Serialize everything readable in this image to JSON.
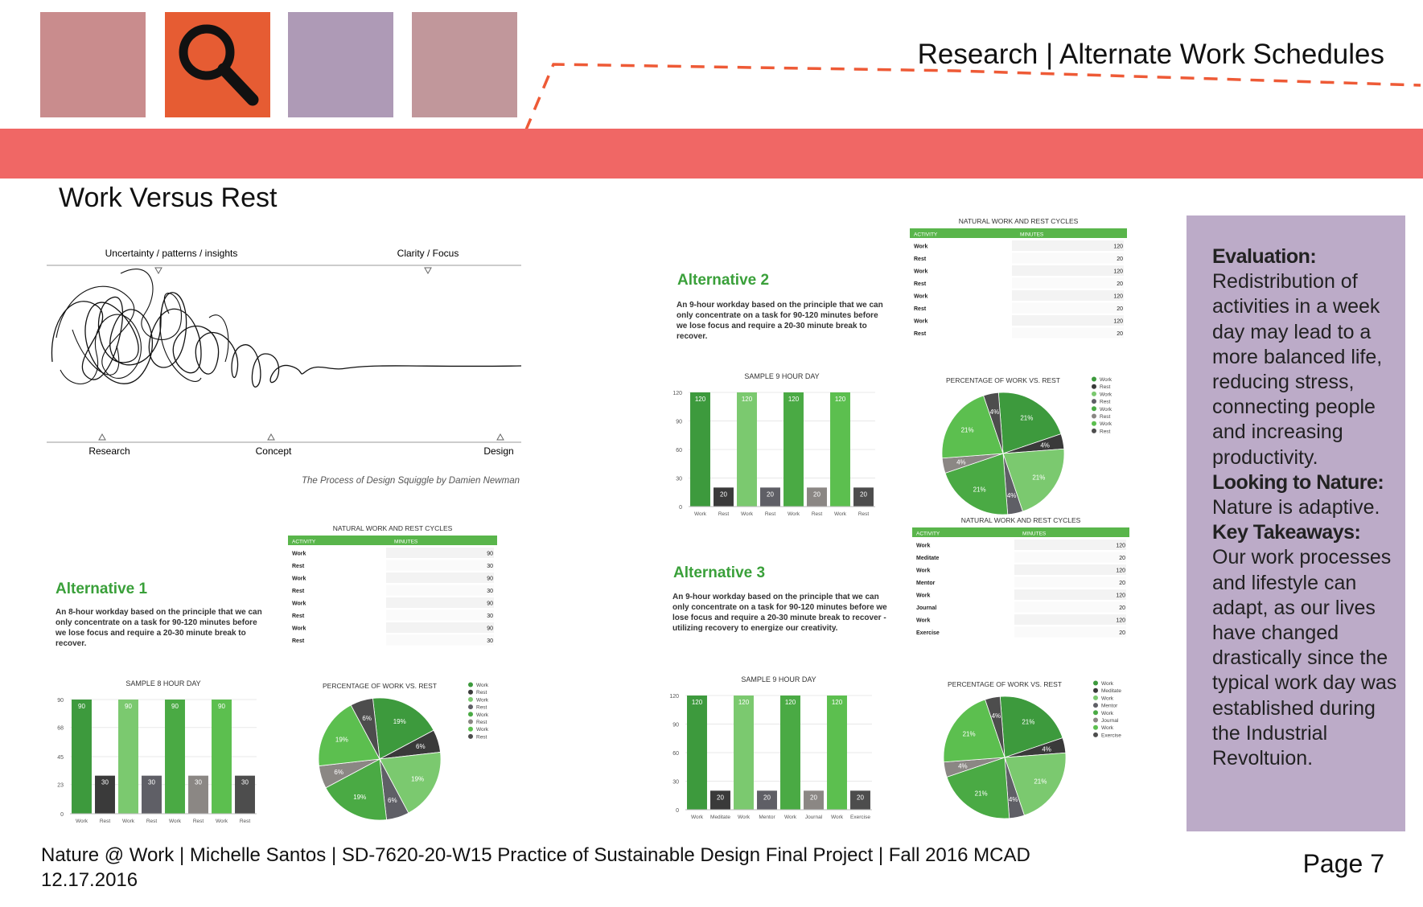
{
  "header": {
    "title": "Research | Alternate Work Schedules",
    "swatches": [
      {
        "color": "#c98c8d"
      },
      {
        "color": "#e65c33",
        "icon": "magnifier-icon"
      },
      {
        "color": "#ae9ab6"
      },
      {
        "color": "#c1979b"
      }
    ],
    "band_color": "#f06765",
    "dash_color": "#ee5a36"
  },
  "section": {
    "title": "Work Versus Rest"
  },
  "squiggle": {
    "top_left_label": "Uncertainty / patterns / insights",
    "top_right_label": "Clarity / Focus",
    "bottom_labels": [
      "Research",
      "Concept",
      "Design"
    ],
    "caption": "The Process of Design Squiggle by Damien Newman"
  },
  "alternatives": [
    {
      "title": "Alternative 1",
      "description": "An 8-hour workday based on the principle that we can only concentrate on a task for 90-120 minutes before we lose focus and require a 20-30 minute break to recover.",
      "table": {
        "title": "NATURAL WORK AND REST CYCLES",
        "headers": [
          "ACTIVITY",
          "MINUTES"
        ],
        "rows": [
          [
            "Work",
            "90"
          ],
          [
            "Rest",
            "30"
          ],
          [
            "Work",
            "90"
          ],
          [
            "Rest",
            "30"
          ],
          [
            "Work",
            "90"
          ],
          [
            "Rest",
            "30"
          ],
          [
            "Work",
            "90"
          ],
          [
            "Rest",
            "30"
          ]
        ]
      }
    },
    {
      "title": "Alternative 2",
      "description": "An 9-hour workday based on the principle that we can only concentrate on a task for 90-120 minutes before we lose focus and require a 20-30 minute break to recover.",
      "table": {
        "title": "NATURAL WORK AND REST CYCLES",
        "headers": [
          "ACTIVITY",
          "MINUTES"
        ],
        "rows": [
          [
            "Work",
            "120"
          ],
          [
            "Rest",
            "20"
          ],
          [
            "Work",
            "120"
          ],
          [
            "Rest",
            "20"
          ],
          [
            "Work",
            "120"
          ],
          [
            "Rest",
            "20"
          ],
          [
            "Work",
            "120"
          ],
          [
            "Rest",
            "20"
          ]
        ]
      }
    },
    {
      "title": "Alternative 3",
      "description": "An 9-hour workday based on the principle that we can only concentrate on a task for 90-120 minutes before we lose focus and require a 20-30 minute break to recover - utilizing recovery to energize our creativity.",
      "table": {
        "title": "NATURAL WORK AND REST CYCLES",
        "headers": [
          "ACTIVITY",
          "MINUTES"
        ],
        "rows": [
          [
            "Work",
            "120"
          ],
          [
            "Meditate",
            "20"
          ],
          [
            "Work",
            "120"
          ],
          [
            "Mentor",
            "20"
          ],
          [
            "Work",
            "120"
          ],
          [
            "Journal",
            "20"
          ],
          [
            "Work",
            "120"
          ],
          [
            "Exercise",
            "20"
          ]
        ]
      }
    }
  ],
  "chart_data": [
    {
      "type": "bar",
      "title": "SAMPLE 8 HOUR DAY",
      "categories": [
        "Work",
        "Rest",
        "Work",
        "Rest",
        "Work",
        "Rest",
        "Work",
        "Rest"
      ],
      "values": [
        90,
        30,
        90,
        30,
        90,
        30,
        90,
        30
      ],
      "yticks": [
        0,
        23,
        45,
        68,
        90
      ],
      "ylim": [
        0,
        90
      ],
      "colors": [
        "#3d9a3d",
        "#3a3a3a",
        "#7bc96f",
        "#5f5f66",
        "#4aaa44",
        "#8b8784",
        "#5cbf4f",
        "#4d4d4d"
      ]
    },
    {
      "type": "pie",
      "title": "PERCENTAGE OF WORK VS. REST",
      "legend": [
        "Work",
        "Rest",
        "Work",
        "Rest",
        "Work",
        "Rest",
        "Work",
        "Rest"
      ],
      "legend_placement": "top-right",
      "values": [
        19,
        6,
        19,
        6,
        19,
        6,
        19,
        6
      ],
      "labels": [
        "19%",
        "6%",
        "19%",
        "6%",
        "19%",
        "6%",
        "19%",
        "6%"
      ],
      "colors": [
        "#3d9a3d",
        "#3a3a3a",
        "#7bc96f",
        "#5f5f66",
        "#4aaa44",
        "#8b8784",
        "#5cbf4f",
        "#4d4d4d"
      ]
    },
    {
      "type": "bar",
      "title": "SAMPLE 9 HOUR DAY",
      "categories": [
        "Work",
        "Rest",
        "Work",
        "Rest",
        "Work",
        "Rest",
        "Work",
        "Rest"
      ],
      "values": [
        120,
        20,
        120,
        20,
        120,
        20,
        120,
        20
      ],
      "yticks": [
        0,
        30,
        60,
        90,
        120
      ],
      "ylim": [
        0,
        120
      ],
      "colors": [
        "#3d9a3d",
        "#3a3a3a",
        "#7bc96f",
        "#5f5f66",
        "#4aaa44",
        "#8b8784",
        "#5cbf4f",
        "#4d4d4d"
      ]
    },
    {
      "type": "pie",
      "title": "PERCENTAGE OF WORK VS. REST",
      "legend": [
        "Work",
        "Rest",
        "Work",
        "Rest",
        "Work",
        "Rest",
        "Work",
        "Rest"
      ],
      "legend_placement": "top-right",
      "values": [
        21,
        4,
        21,
        4,
        21,
        4,
        21,
        4
      ],
      "labels": [
        "21%",
        "4%",
        "21%",
        "4%",
        "21%",
        "4%",
        "21%",
        "4%"
      ],
      "colors": [
        "#3d9a3d",
        "#3a3a3a",
        "#7bc96f",
        "#5f5f66",
        "#4aaa44",
        "#8b8784",
        "#5cbf4f",
        "#4d4d4d"
      ]
    },
    {
      "type": "bar",
      "title": "SAMPLE 9 HOUR DAY",
      "categories": [
        "Work",
        "Meditate",
        "Work",
        "Mentor",
        "Work",
        "Journal",
        "Work",
        "Exercise"
      ],
      "values": [
        120,
        20,
        120,
        20,
        120,
        20,
        120,
        20
      ],
      "yticks": [
        0,
        30,
        60,
        90,
        120
      ],
      "ylim": [
        0,
        120
      ],
      "colors": [
        "#3d9a3d",
        "#3a3a3a",
        "#7bc96f",
        "#5f5f66",
        "#4aaa44",
        "#8b8784",
        "#5cbf4f",
        "#4d4d4d"
      ]
    },
    {
      "type": "pie",
      "title": "PERCENTAGE OF WORK VS. REST",
      "legend": [
        "Work",
        "Meditate",
        "Work",
        "Mentor",
        "Work",
        "Journal",
        "Work",
        "Exercise"
      ],
      "legend_placement": "top-right",
      "values": [
        21,
        4,
        21,
        4,
        21,
        4,
        21,
        4
      ],
      "labels": [
        "21%",
        "4%",
        "21%",
        "4%",
        "21%",
        "4%",
        "21%",
        "4%"
      ],
      "colors": [
        "#3d9a3d",
        "#3a3a3a",
        "#7bc96f",
        "#5f5f66",
        "#4aaa44",
        "#8b8784",
        "#5cbf4f",
        "#4d4d4d"
      ]
    }
  ],
  "evaluation_panel": {
    "background": "#bcabc8",
    "evaluation_heading": "Evaluation:",
    "evaluation_text": "Redistribution of activities in a week day may lead to a more balanced life, reducing stress, connecting people and increasing productivity.",
    "nature_heading": "Looking to Nature:",
    "nature_text": "Nature is adaptive.",
    "takeaways_heading": "Key Takeaways:",
    "takeaways_text": "Our work processes and lifestyle can adapt, as our lives have changed drastically since the typical work day was established during the Industrial Revoltuion."
  },
  "footer": {
    "line1": "Nature @ Work | Michelle Santos | SD-7620-20-W15 Practice of Sustainable Design Final Project | Fall 2016 MCAD",
    "line2": "12.17.2016",
    "page": "Page 7"
  }
}
